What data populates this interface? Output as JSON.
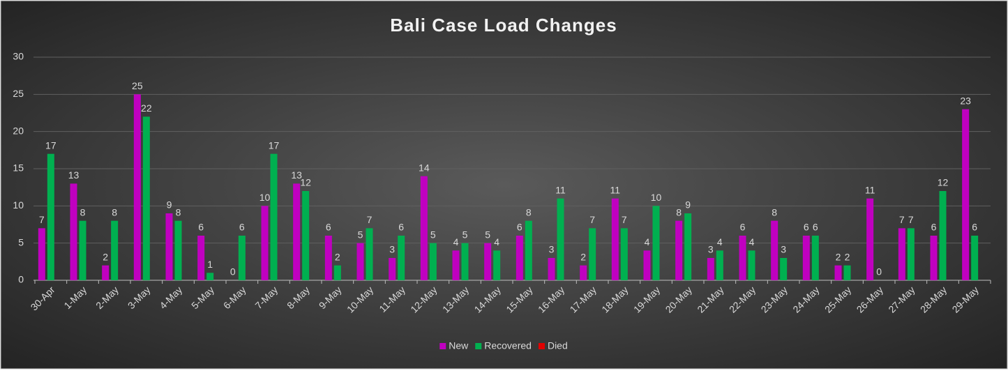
{
  "chart_data": {
    "type": "bar",
    "title": "Bali Case Load Changes",
    "categories": [
      "30-Apr",
      "1-May",
      "2-May",
      "3-May",
      "4-May",
      "5-May",
      "6-May",
      "7-May",
      "8-May",
      "9-May",
      "10-May",
      "11-May",
      "12-May",
      "13-May",
      "14-May",
      "15-May",
      "16-May",
      "17-May",
      "18-May",
      "19-May",
      "20-May",
      "21-May",
      "22-May",
      "23-May",
      "24-May",
      "25-May",
      "26-May",
      "27-May",
      "28-May",
      "29-May"
    ],
    "series": [
      {
        "name": "New",
        "color": "#c000c0",
        "values": [
          7,
          13,
          2,
          25,
          9,
          6,
          0,
          10,
          13,
          6,
          5,
          3,
          14,
          4,
          5,
          6,
          3,
          2,
          11,
          4,
          8,
          3,
          6,
          8,
          6,
          2,
          11,
          7,
          6,
          23
        ]
      },
      {
        "name": "Recovered",
        "color": "#00b050",
        "values": [
          17,
          8,
          8,
          22,
          8,
          1,
          6,
          17,
          12,
          2,
          7,
          6,
          5,
          5,
          4,
          8,
          11,
          7,
          7,
          10,
          9,
          4,
          4,
          3,
          6,
          2,
          0,
          7,
          12,
          6
        ]
      },
      {
        "name": "Died",
        "color": "#e00000",
        "values": [
          null,
          null,
          null,
          null,
          null,
          null,
          null,
          null,
          null,
          null,
          null,
          null,
          null,
          null,
          null,
          null,
          null,
          null,
          null,
          null,
          null,
          null,
          null,
          null,
          null,
          null,
          null,
          null,
          null,
          null
        ]
      }
    ],
    "ylim": [
      0,
      30
    ],
    "yticks": [
      0,
      5,
      10,
      15,
      20,
      25,
      30
    ],
    "grid": true,
    "legend": "bottom"
  }
}
